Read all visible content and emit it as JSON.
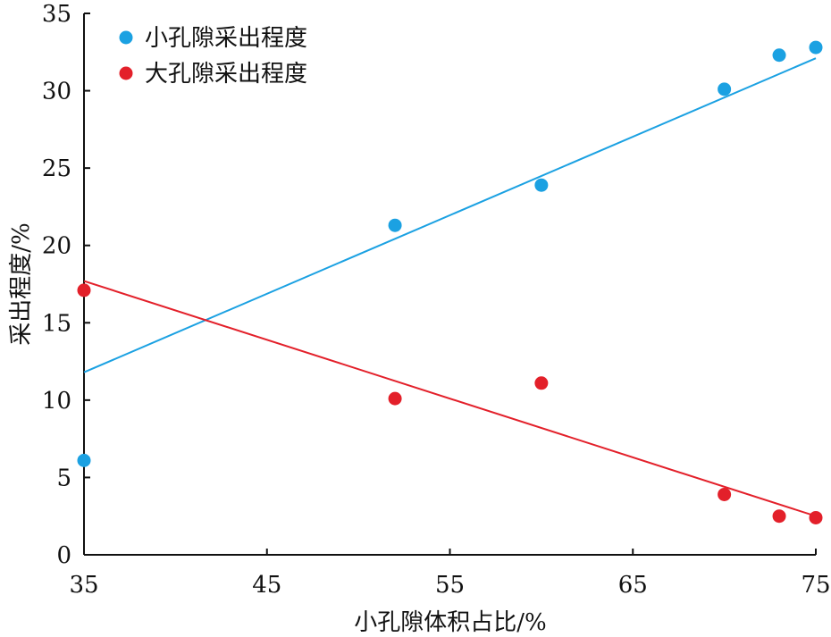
{
  "chart_data": {
    "type": "scatter",
    "title": "",
    "xlabel": "小孔隙体积占比/%",
    "ylabel": "采出程度/%",
    "xlim": [
      35,
      75
    ],
    "ylim": [
      0,
      35
    ],
    "xticks": [
      35,
      45,
      55,
      65,
      75
    ],
    "yticks": [
      0,
      5,
      10,
      15,
      20,
      25,
      30,
      35
    ],
    "grid": false,
    "legend_position": "top-left",
    "series": [
      {
        "name": "小孔隙采出程度",
        "color": "#1ba1e2",
        "x": [
          35,
          52,
          60,
          70,
          73,
          75
        ],
        "y": [
          6.1,
          21.3,
          23.9,
          30.1,
          32.3,
          32.8
        ],
        "trendline": {
          "x": [
            35,
            75
          ],
          "y": [
            11.8,
            32.1
          ]
        }
      },
      {
        "name": "大孔隙采出程度",
        "color": "#e3202a",
        "x": [
          35,
          52,
          60,
          70,
          73,
          75
        ],
        "y": [
          17.1,
          10.1,
          11.1,
          3.9,
          2.5,
          2.4
        ],
        "trendline": {
          "x": [
            35,
            75
          ],
          "y": [
            17.7,
            2.5
          ]
        }
      }
    ]
  }
}
